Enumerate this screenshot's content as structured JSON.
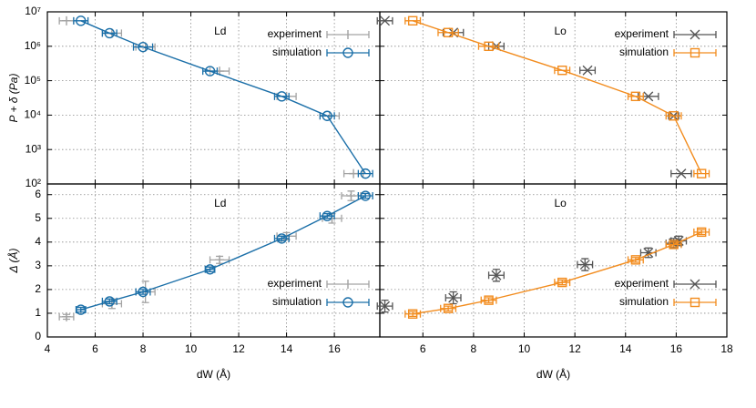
{
  "chart_data": [
    {
      "type": "scatter",
      "title": "Ld",
      "ylabel": "P + δ (Pa)",
      "log_y": true,
      "grid": true,
      "legend": "upper right",
      "xlim": [
        4,
        17.9
      ],
      "xticks": [
        4,
        6,
        8,
        10,
        12,
        14,
        16
      ],
      "xtick_labels": false,
      "ylim": [
        100,
        10000000
      ],
      "ytick_labels": true,
      "yticks": [
        {
          "value": 100,
          "label": "10²"
        },
        {
          "value": 1000,
          "label": "10³"
        },
        {
          "value": 10000,
          "label": "10⁴"
        },
        {
          "value": 100000,
          "label": "10⁵"
        },
        {
          "value": 1000000,
          "label": "10⁶"
        },
        {
          "value": 10000000,
          "label": "10⁷"
        }
      ],
      "series": [
        {
          "name": "experiment",
          "color": "#a3a3a3",
          "marker": "plus",
          "line": false,
          "x": [
            4.8,
            6.7,
            8.1,
            11.2,
            14.0,
            15.8,
            16.8
          ],
          "values": [
            5500000,
            2400000,
            950000,
            190000,
            35000,
            9500,
            200
          ],
          "xerr": [
            0.3,
            0.4,
            0.4,
            0.4,
            0.4,
            0.4,
            0.4
          ]
        },
        {
          "name": "simulation",
          "color": "#1b6fa8",
          "marker": "circle",
          "line": true,
          "x": [
            5.4,
            6.6,
            8.0,
            10.8,
            13.8,
            15.7,
            17.3
          ],
          "values": [
            5500000,
            2400000,
            950000,
            190000,
            35000,
            9500,
            200
          ],
          "xerr": [
            0.3,
            0.3,
            0.4,
            0.3,
            0.3,
            0.3,
            0.3
          ]
        }
      ]
    },
    {
      "type": "scatter",
      "title": "Lo",
      "log_y": true,
      "grid": true,
      "legend": "upper right",
      "xlim": [
        4.3,
        18
      ],
      "xticks": [
        6,
        8,
        10,
        12,
        14,
        16,
        18
      ],
      "xtick_labels": false,
      "ylim": [
        100,
        10000000
      ],
      "ytick_labels": false,
      "yticks": [
        100,
        1000,
        10000,
        100000,
        1000000,
        10000000
      ],
      "series": [
        {
          "name": "experiment",
          "color": "#555555",
          "marker": "cross",
          "line": false,
          "x": [
            4.5,
            7.2,
            8.9,
            12.5,
            14.9,
            15.9,
            16.2
          ],
          "values": [
            5500000,
            2500000,
            1000000,
            200000,
            35000,
            9500,
            200
          ],
          "xerr": [
            0.3,
            0.4,
            0.3,
            0.3,
            0.4,
            0.2,
            0.4
          ]
        },
        {
          "name": "simulation",
          "color": "#f28c1e",
          "marker": "square",
          "line": true,
          "x": [
            5.6,
            7.0,
            8.6,
            11.5,
            14.4,
            15.9,
            17.0
          ],
          "values": [
            5500000,
            2500000,
            1000000,
            200000,
            35000,
            9500,
            200
          ],
          "xerr": [
            0.3,
            0.4,
            0.4,
            0.3,
            0.3,
            0.3,
            0.3
          ]
        }
      ]
    },
    {
      "type": "scatter",
      "title": "Ld",
      "ylabel": "Δ (Å)",
      "xlabel": "dW (Å)",
      "log_y": false,
      "grid": true,
      "legend": "lower right",
      "xlim": [
        4,
        17.9
      ],
      "xticks": [
        4,
        6,
        8,
        10,
        12,
        14,
        16
      ],
      "xtick_labels": true,
      "ylim": [
        0,
        6.45
      ],
      "yticks": [
        0,
        1,
        2,
        3,
        4,
        5,
        6
      ],
      "ytick_labels": true,
      "series": [
        {
          "name": "experiment",
          "color": "#a3a3a3",
          "marker": "plus",
          "line": false,
          "x": [
            4.8,
            6.7,
            8.1,
            11.2,
            14.0,
            15.9,
            16.7
          ],
          "values": [
            0.85,
            1.4,
            1.9,
            3.25,
            4.25,
            5.0,
            5.95
          ],
          "xerr": [
            0.3,
            0.4,
            0.4,
            0.4,
            0.4,
            0.4,
            0.4
          ],
          "yerr": [
            0.1,
            0.2,
            0.45,
            0.15,
            0.15,
            0.2,
            0.2
          ]
        },
        {
          "name": "simulation",
          "color": "#1b6fa8",
          "marker": "circle",
          "line": true,
          "x": [
            5.4,
            6.6,
            8.0,
            10.8,
            13.8,
            15.7,
            17.3
          ],
          "values": [
            1.15,
            1.5,
            1.9,
            2.85,
            4.15,
            5.1,
            5.95
          ],
          "xerr": [
            0.2,
            0.3,
            0.3,
            0.2,
            0.3,
            0.3,
            0.3
          ],
          "yerr": [
            0.1,
            0.1,
            0.1,
            0.1,
            0.1,
            0.1,
            0.1
          ]
        }
      ]
    },
    {
      "type": "scatter",
      "title": "Lo",
      "xlabel": "dW (Å)",
      "log_y": false,
      "grid": true,
      "legend": "lower right",
      "xlim": [
        4.3,
        18
      ],
      "xticks": [
        6,
        8,
        10,
        12,
        14,
        16,
        18
      ],
      "xtick_labels": true,
      "ylim": [
        0,
        6.45
      ],
      "yticks": [
        0,
        1,
        2,
        3,
        4,
        5,
        6
      ],
      "ytick_labels": false,
      "series": [
        {
          "name": "experiment",
          "color": "#555555",
          "marker": "cross",
          "line": false,
          "x": [
            4.5,
            7.2,
            8.9,
            12.4,
            14.9,
            15.9,
            16.1
          ],
          "values": [
            1.3,
            1.65,
            2.6,
            3.05,
            3.55,
            3.95,
            4.05
          ],
          "xerr": [
            0.3,
            0.3,
            0.3,
            0.3,
            0.3,
            0.3,
            0.3
          ],
          "yerr": [
            0.25,
            0.25,
            0.25,
            0.25,
            0.2,
            0.2,
            0.2
          ]
        },
        {
          "name": "simulation",
          "color": "#f28c1e",
          "marker": "square",
          "line": true,
          "x": [
            5.6,
            7.0,
            8.6,
            11.5,
            14.4,
            15.9,
            17.0
          ],
          "values": [
            0.97,
            1.2,
            1.55,
            2.3,
            3.25,
            3.9,
            4.42
          ],
          "xerr": [
            0.3,
            0.3,
            0.3,
            0.3,
            0.3,
            0.3,
            0.3
          ],
          "yerr": [
            0.1,
            0.1,
            0.1,
            0.1,
            0.1,
            0.1,
            0.1
          ]
        }
      ]
    }
  ]
}
